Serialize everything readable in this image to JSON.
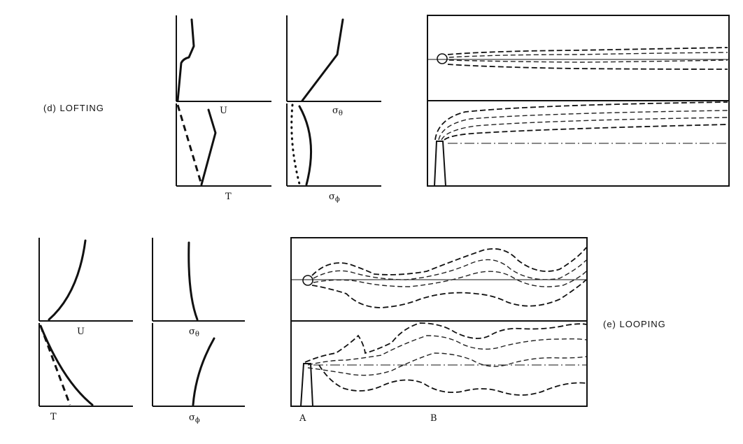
{
  "lofting": {
    "label": "(d)  LOFTING",
    "u_label": "U",
    "t_label": "T",
    "sigma_theta": {
      "base": "σ",
      "sub": "θ"
    },
    "sigma_phi": {
      "base": "σ",
      "sub": "ϕ"
    }
  },
  "looping": {
    "label": "(e)  LOOPING",
    "u_label": "U",
    "t_label": "T",
    "sigma_theta": {
      "base": "σ",
      "sub": "θ"
    },
    "sigma_phi": {
      "base": "σ",
      "sub": "ϕ"
    },
    "point_a": "A",
    "point_b": "B"
  }
}
